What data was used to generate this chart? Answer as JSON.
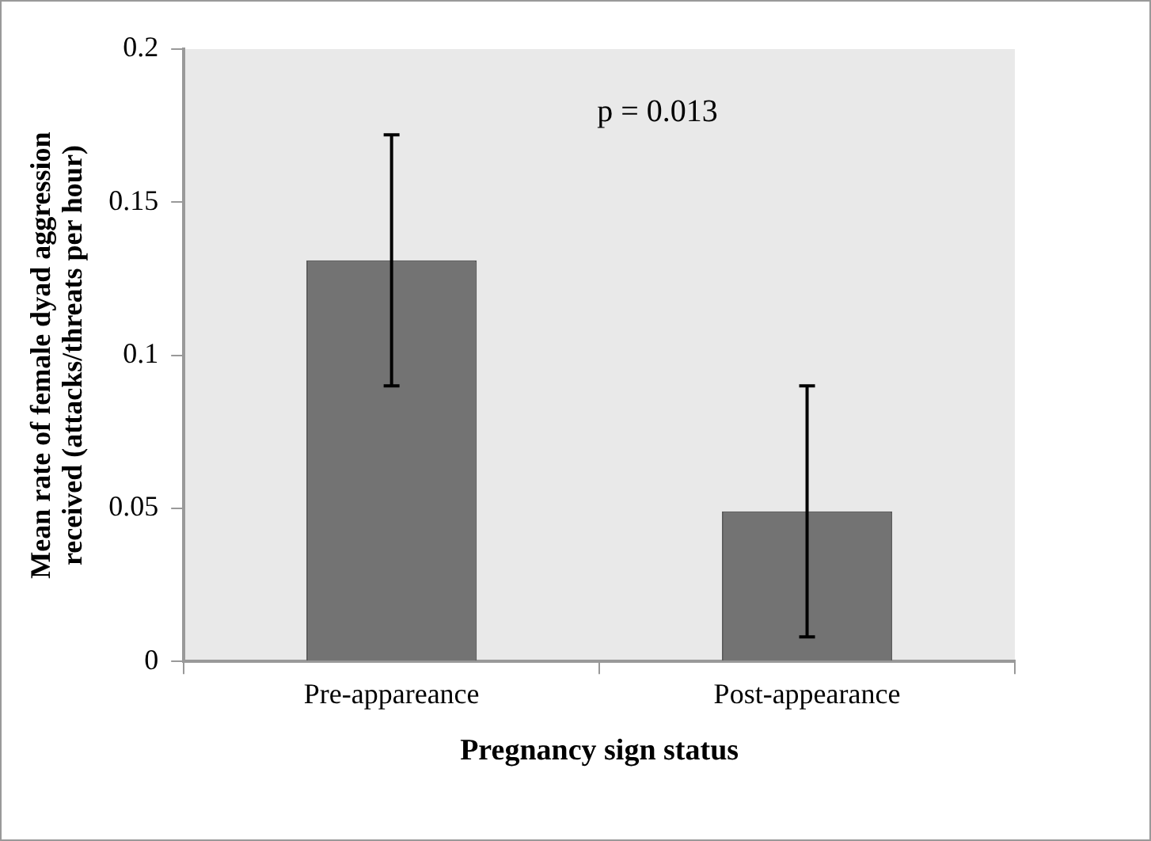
{
  "chart_data": {
    "type": "bar",
    "xlabel": "Pregnancy sign status",
    "ylabel": "Mean rate of female dyad aggression received (attacks/threats per hour)",
    "categories": [
      "Pre-appareance",
      "Post-appearance"
    ],
    "values": [
      0.131,
      0.049
    ],
    "errors": [
      0.041,
      0.041
    ],
    "color": "#737373",
    "ylim": [
      0,
      0.2
    ],
    "yticks": [
      0,
      0.05,
      0.1,
      0.15,
      0.2
    ],
    "grid": false,
    "legend": false,
    "annotations": [
      "p = 0.013"
    ]
  }
}
